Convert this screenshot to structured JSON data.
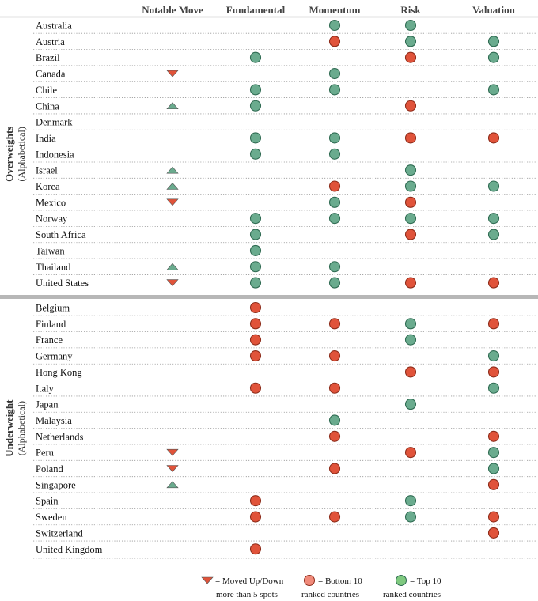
{
  "chart_data": {
    "type": "table",
    "columns": [
      "Notable Move",
      "Fundamental",
      "Momentum",
      "Risk",
      "Valuation"
    ],
    "sections": [
      {
        "title": "Overweights",
        "subtitle": "(Alphabetical)",
        "rows": [
          {
            "country": "Australia",
            "move": "",
            "fundamental": "",
            "momentum": "top",
            "risk": "top",
            "valuation": ""
          },
          {
            "country": "Austria",
            "move": "",
            "fundamental": "",
            "momentum": "bottom",
            "risk": "top",
            "valuation": "top"
          },
          {
            "country": "Brazil",
            "move": "",
            "fundamental": "top",
            "momentum": "",
            "risk": "bottom",
            "valuation": "top"
          },
          {
            "country": "Canada",
            "move": "down",
            "fundamental": "",
            "momentum": "top",
            "risk": "",
            "valuation": ""
          },
          {
            "country": "Chile",
            "move": "",
            "fundamental": "top",
            "momentum": "top",
            "risk": "",
            "valuation": "top"
          },
          {
            "country": "China",
            "move": "up",
            "fundamental": "top",
            "momentum": "",
            "risk": "bottom",
            "valuation": ""
          },
          {
            "country": "Denmark",
            "move": "",
            "fundamental": "",
            "momentum": "",
            "risk": "",
            "valuation": ""
          },
          {
            "country": "India",
            "move": "",
            "fundamental": "top",
            "momentum": "top",
            "risk": "bottom",
            "valuation": "bottom"
          },
          {
            "country": "Indonesia",
            "move": "",
            "fundamental": "top",
            "momentum": "top",
            "risk": "",
            "valuation": ""
          },
          {
            "country": "Israel",
            "move": "up",
            "fundamental": "",
            "momentum": "",
            "risk": "top",
            "valuation": ""
          },
          {
            "country": "Korea",
            "move": "up",
            "fundamental": "",
            "momentum": "bottom",
            "risk": "top",
            "valuation": "top"
          },
          {
            "country": "Mexico",
            "move": "down",
            "fundamental": "",
            "momentum": "top",
            "risk": "bottom",
            "valuation": ""
          },
          {
            "country": "Norway",
            "move": "",
            "fundamental": "top",
            "momentum": "top",
            "risk": "top",
            "valuation": "top"
          },
          {
            "country": "South Africa",
            "move": "",
            "fundamental": "top",
            "momentum": "",
            "risk": "bottom",
            "valuation": "top"
          },
          {
            "country": "Taiwan",
            "move": "",
            "fundamental": "top",
            "momentum": "",
            "risk": "",
            "valuation": ""
          },
          {
            "country": "Thailand",
            "move": "up",
            "fundamental": "top",
            "momentum": "top",
            "risk": "",
            "valuation": ""
          },
          {
            "country": "United States",
            "move": "down",
            "fundamental": "top",
            "momentum": "top",
            "risk": "bottom",
            "valuation": "bottom"
          }
        ]
      },
      {
        "title": "Underweight",
        "subtitle": "(Alphabetical)",
        "rows": [
          {
            "country": "Belgium",
            "move": "",
            "fundamental": "bottom",
            "momentum": "",
            "risk": "",
            "valuation": ""
          },
          {
            "country": "Finland",
            "move": "",
            "fundamental": "bottom",
            "momentum": "bottom",
            "risk": "top",
            "valuation": "bottom"
          },
          {
            "country": "France",
            "move": "",
            "fundamental": "bottom",
            "momentum": "",
            "risk": "top",
            "valuation": ""
          },
          {
            "country": "Germany",
            "move": "",
            "fundamental": "bottom",
            "momentum": "bottom",
            "risk": "",
            "valuation": "top"
          },
          {
            "country": "Hong Kong",
            "move": "",
            "fundamental": "",
            "momentum": "",
            "risk": "bottom",
            "valuation": "bottom"
          },
          {
            "country": "Italy",
            "move": "",
            "fundamental": "bottom",
            "momentum": "bottom",
            "risk": "",
            "valuation": "top"
          },
          {
            "country": "Japan",
            "move": "",
            "fundamental": "",
            "momentum": "",
            "risk": "top",
            "valuation": ""
          },
          {
            "country": "Malaysia",
            "move": "",
            "fundamental": "",
            "momentum": "top",
            "risk": "",
            "valuation": ""
          },
          {
            "country": "Netherlands",
            "move": "",
            "fundamental": "",
            "momentum": "bottom",
            "risk": "",
            "valuation": "bottom"
          },
          {
            "country": "Peru",
            "move": "down",
            "fundamental": "",
            "momentum": "",
            "risk": "bottom",
            "valuation": "top"
          },
          {
            "country": "Poland",
            "move": "down",
            "fundamental": "",
            "momentum": "bottom",
            "risk": "",
            "valuation": "top"
          },
          {
            "country": "Singapore",
            "move": "up",
            "fundamental": "",
            "momentum": "",
            "risk": "",
            "valuation": "bottom"
          },
          {
            "country": "Spain",
            "move": "",
            "fundamental": "bottom",
            "momentum": "",
            "risk": "top",
            "valuation": ""
          },
          {
            "country": "Sweden",
            "move": "",
            "fundamental": "bottom",
            "momentum": "bottom",
            "risk": "top",
            "valuation": "bottom"
          },
          {
            "country": "Switzerland",
            "move": "",
            "fundamental": "",
            "momentum": "",
            "risk": "",
            "valuation": "bottom"
          },
          {
            "country": "United Kingdom",
            "move": "",
            "fundamental": "bottom",
            "momentum": "",
            "risk": "",
            "valuation": ""
          }
        ]
      }
    ],
    "legend": [
      {
        "symbol": "triangle-down",
        "line1": "= Moved Up/Down",
        "line2": "more than 5 spots"
      },
      {
        "symbol": "bottom-circle",
        "line1": "= Bottom 10",
        "line2": "ranked countries"
      },
      {
        "symbol": "top-circle",
        "line1": "= Top 10",
        "line2": "ranked countries"
      }
    ]
  },
  "colors": {
    "top": "#6aab8e",
    "top_stroke": "#2f6b52",
    "bottom": "#e0533a",
    "bottom_stroke": "#8e2c1a",
    "move_up": "#6aab8e",
    "move_down": "#e0533a",
    "legend_bottom_fill": "#f08a7a",
    "legend_top_fill": "#7fc97f",
    "grid": "#999999",
    "rule": "#8c8c8c"
  },
  "icons": {
    "top": "top-10-circle-icon",
    "bottom": "bottom-10-circle-icon",
    "up": "triangle-up-icon",
    "down": "triangle-down-icon"
  }
}
